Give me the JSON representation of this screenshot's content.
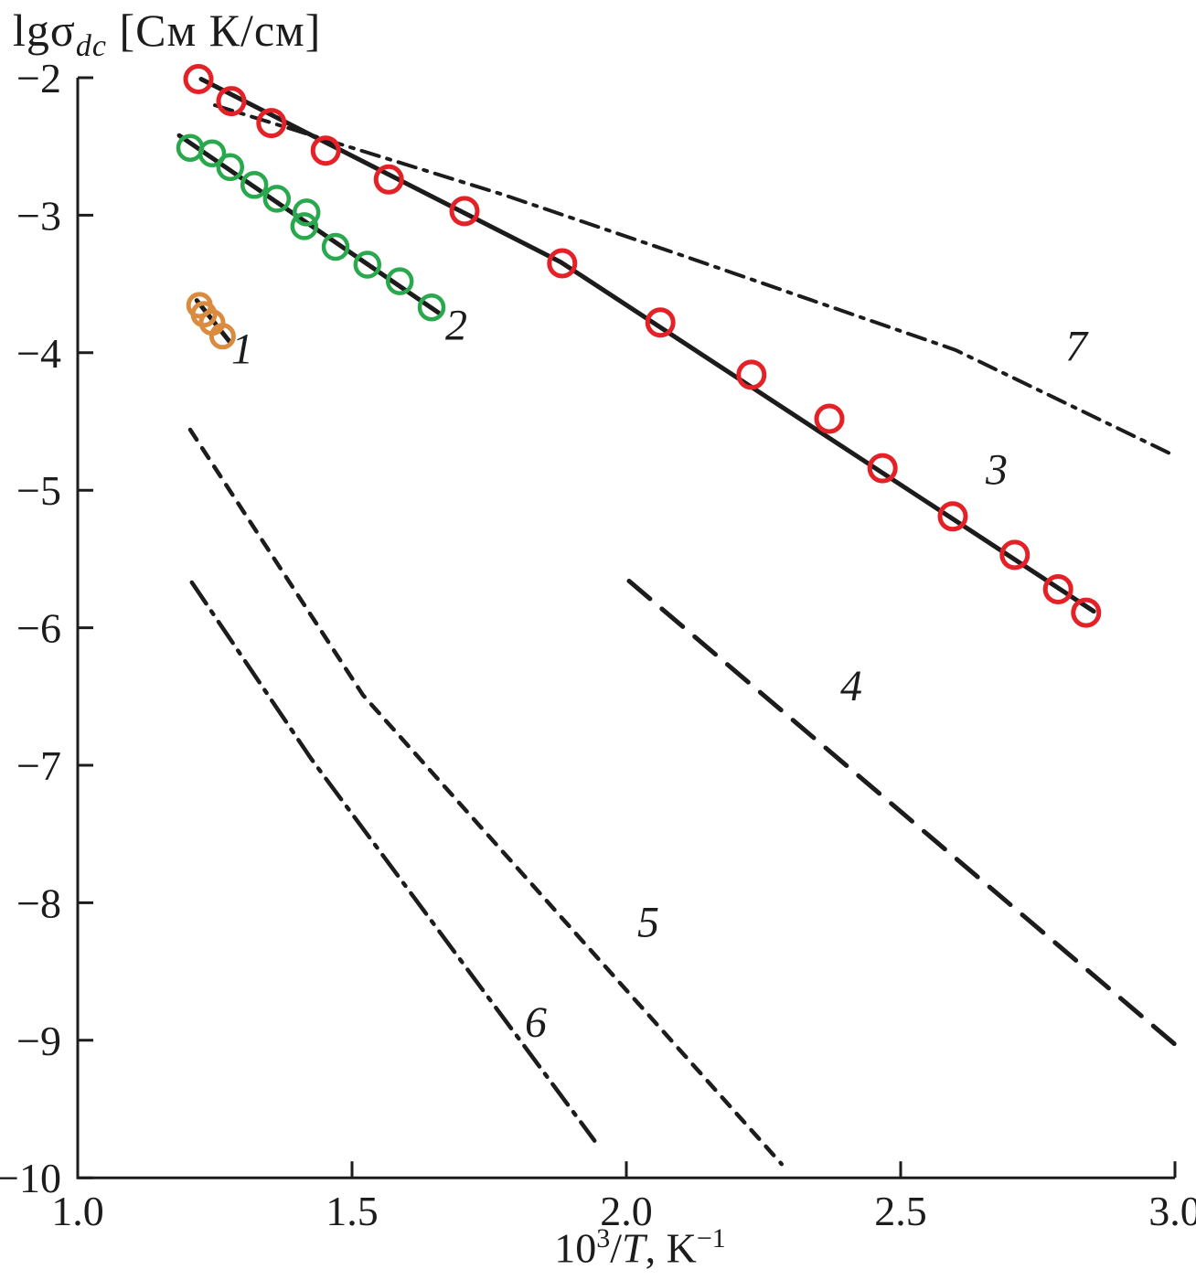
{
  "figure": {
    "background": "#ffffff",
    "y_title": {
      "lg": "lg",
      "sigma": "σ",
      "sub": "dc",
      "units": " [См К/см]"
    },
    "x_title": {
      "base": "10",
      "exp": "3",
      "slash": "/",
      "T": "T",
      "rest": ", K",
      "exp2": "−1"
    }
  },
  "chart_data": {
    "type": "scatter",
    "title": "",
    "xlabel": "10^3/T, K^-1",
    "ylabel": "lg sigma_dc [Sm K/cm]",
    "grid": false,
    "colors": {
      "red": "#e42127",
      "green": "#2aa84e",
      "orange": "#db8b3f",
      "black": "#1c1c1c"
    },
    "x_axis": {
      "min": 1.0,
      "max": 3.0,
      "ticks": [
        1.0,
        1.5,
        2.0,
        2.5,
        3.0
      ],
      "tick_labels": [
        "1.0",
        "1.5",
        "2.0",
        "2.5",
        "3.0"
      ]
    },
    "y_axis": {
      "min": -10,
      "max": -2,
      "ticks": [
        -2,
        -3,
        -4,
        -5,
        -6,
        -7,
        -8,
        -9,
        -10
      ],
      "tick_labels": [
        "−2",
        "−3",
        "−4",
        "−5",
        "−6",
        "−7",
        "−8",
        "−9",
        "−10"
      ]
    },
    "series": [
      {
        "id": "1",
        "label": "1",
        "label_pos": [
          1.3,
          -3.97
        ],
        "marker_color": "#db8b3f",
        "marker_radius": 12,
        "marker_stroke": 5,
        "points": [
          [
            1.222,
            -3.655
          ],
          [
            1.23,
            -3.72
          ],
          [
            1.245,
            -3.78
          ],
          [
            1.264,
            -3.88
          ]
        ],
        "fit_line": [
          [
            1.217,
            -3.62
          ],
          [
            1.277,
            -3.92
          ]
        ]
      },
      {
        "id": "2",
        "label": "2",
        "label_pos": [
          1.69,
          -3.8
        ],
        "marker_color": "#2aa84e",
        "marker_radius": 13,
        "marker_stroke": 4.5,
        "points": [
          [
            1.205,
            -2.51
          ],
          [
            1.245,
            -2.55
          ],
          [
            1.278,
            -2.65
          ],
          [
            1.322,
            -2.78
          ],
          [
            1.363,
            -2.88
          ],
          [
            1.417,
            -2.98
          ],
          [
            1.413,
            -3.08
          ],
          [
            1.47,
            -3.23
          ],
          [
            1.528,
            -3.36
          ],
          [
            1.587,
            -3.48
          ],
          [
            1.645,
            -3.67
          ]
        ],
        "fit_line": [
          [
            1.185,
            -2.42
          ],
          [
            1.658,
            -3.71
          ]
        ]
      },
      {
        "id": "3",
        "label": "3",
        "label_pos": [
          2.675,
          -4.85
        ],
        "marker_color": "#e42127",
        "marker_radius": 14,
        "marker_stroke": 5,
        "points": [
          [
            1.22,
            -2.01
          ],
          [
            1.28,
            -2.17
          ],
          [
            1.353,
            -2.33
          ],
          [
            1.452,
            -2.53
          ],
          [
            1.567,
            -2.74
          ],
          [
            1.705,
            -2.97
          ],
          [
            1.883,
            -3.35
          ],
          [
            2.062,
            -3.78
          ],
          [
            2.228,
            -4.16
          ],
          [
            2.37,
            -4.48
          ],
          [
            2.467,
            -4.84
          ],
          [
            2.595,
            -5.19
          ],
          [
            2.708,
            -5.47
          ],
          [
            2.787,
            -5.72
          ],
          [
            2.838,
            -5.89
          ]
        ],
        "fit_line": [
          [
            1.225,
            -2.01
          ],
          [
            1.88,
            -3.34
          ],
          [
            2.852,
            -5.88
          ]
        ]
      }
    ],
    "ref_lines": [
      {
        "id": "4",
        "label": "4",
        "label_pos": [
          2.41,
          -6.42
        ],
        "style": "long-dash",
        "dash": "30 17",
        "width": 5,
        "points": [
          [
            2.005,
            -5.66
          ],
          [
            3.0,
            -9.03
          ]
        ]
      },
      {
        "id": "5",
        "label": "5",
        "label_pos": [
          2.04,
          -8.14
        ],
        "style": "short-dash",
        "dash": "13 11",
        "width": 4.5,
        "points": [
          [
            1.205,
            -4.56
          ],
          [
            1.52,
            -6.49
          ],
          [
            2.283,
            -9.9
          ]
        ]
      },
      {
        "id": "6",
        "label": "6",
        "label_pos": [
          1.835,
          -8.87
        ],
        "style": "dash-dot",
        "dash": "28 10 4 10",
        "width": 4.5,
        "points": [
          [
            1.208,
            -5.67
          ],
          [
            1.425,
            -6.95
          ],
          [
            1.942,
            -9.73
          ]
        ]
      },
      {
        "id": "7",
        "label": "7",
        "label_pos": [
          2.82,
          -3.95
        ],
        "style": "dash-dot",
        "dash": "20 9 4 9",
        "width": 4,
        "points": [
          [
            1.25,
            -2.2
          ],
          [
            1.775,
            -2.85
          ],
          [
            2.1,
            -3.29
          ],
          [
            2.6,
            -3.98
          ],
          [
            3.0,
            -4.75
          ]
        ]
      }
    ]
  }
}
